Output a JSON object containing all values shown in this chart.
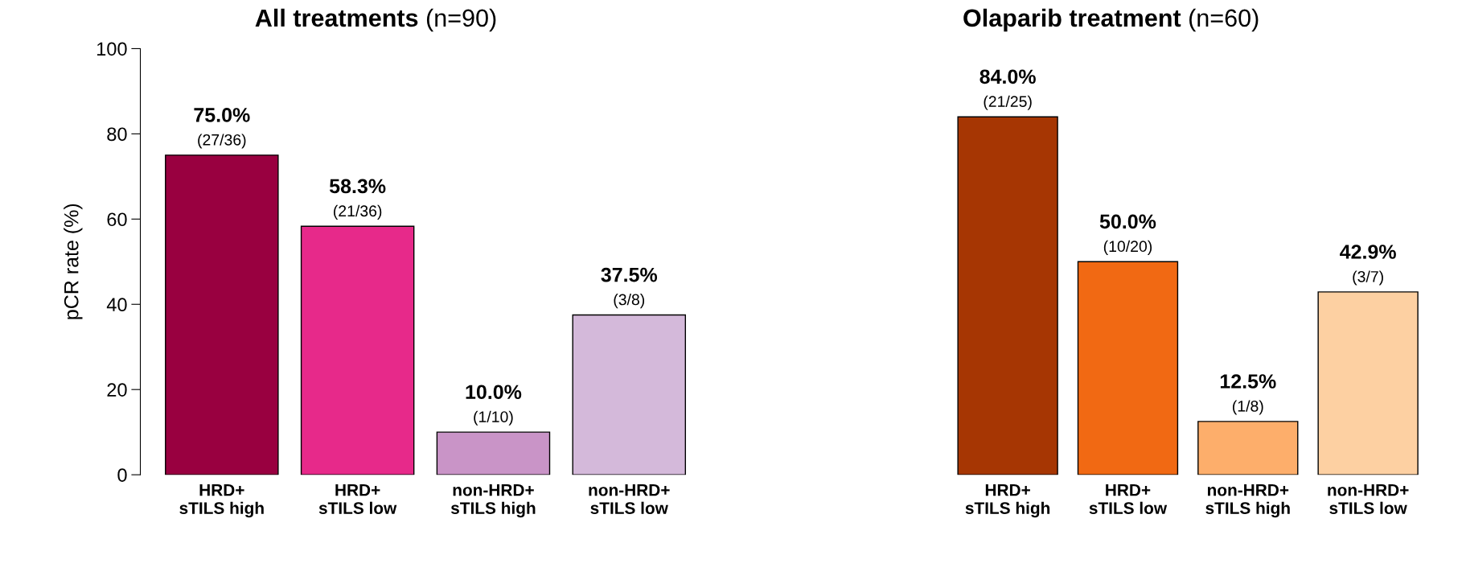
{
  "chart_data": [
    {
      "type": "bar",
      "title": "All treatments",
      "subtitle": "(n=90)",
      "ylabel": "pCR rate (%)",
      "categories": [
        "HRD+\nsTILS high",
        "HRD+\nsTILS low",
        "non-HRD+\nsTILS high",
        "non-HRD+\nsTILS low"
      ],
      "values": [
        75.0,
        58.3,
        10.0,
        37.5
      ],
      "colors": [
        "#990040",
        "#e7298a",
        "#c994c7",
        "#d4b9da"
      ],
      "value_labels": [
        "75.0%",
        "58.3%",
        "10.0%",
        "37.5%"
      ],
      "annotations": [
        {
          "text": "(27/36)",
          "x": "HRD+\nsTILS high",
          "y": 75.0
        },
        {
          "text": "(21/36)",
          "x": "HRD+\nsTILS low",
          "y": 58.3
        },
        {
          "text": "(1/10)",
          "x": "non-HRD+\nsTILS high",
          "y": 10.0
        },
        {
          "text": "(3/8)",
          "x": "non-HRD+\nsTILS low",
          "y": 37.5
        }
      ],
      "ylim": [
        0,
        100
      ],
      "yticks": [
        0,
        20,
        40,
        60,
        80,
        100
      ],
      "grid": false,
      "legend": false
    },
    {
      "type": "bar",
      "title": "Olaparib treatment",
      "subtitle": "(n=60)",
      "categories": [
        "HRD+\nsTILS high",
        "HRD+\nsTILS low",
        "non-HRD+\nsTILS high",
        "non-HRD+\nsTILS low"
      ],
      "values": [
        84.0,
        50.0,
        12.5,
        42.9
      ],
      "colors": [
        "#a63603",
        "#f16913",
        "#fdae6b",
        "#fdd0a2"
      ],
      "value_labels": [
        "84.0%",
        "50.0%",
        "12.5%",
        "42.9%"
      ],
      "annotations": [
        {
          "text": "(21/25)",
          "x": "HRD+\nsTILS high",
          "y": 84.0
        },
        {
          "text": "(10/20)",
          "x": "HRD+\nsTILS low",
          "y": 50.0
        },
        {
          "text": "(1/8)",
          "x": "non-HRD+\nsTILS high",
          "y": 12.5
        },
        {
          "text": "(3/7)",
          "x": "non-HRD+\nsTILS low",
          "y": 42.9
        }
      ],
      "ylim": [
        0,
        100
      ],
      "tick_labels": "x",
      "grid": false,
      "legend": false
    }
  ]
}
